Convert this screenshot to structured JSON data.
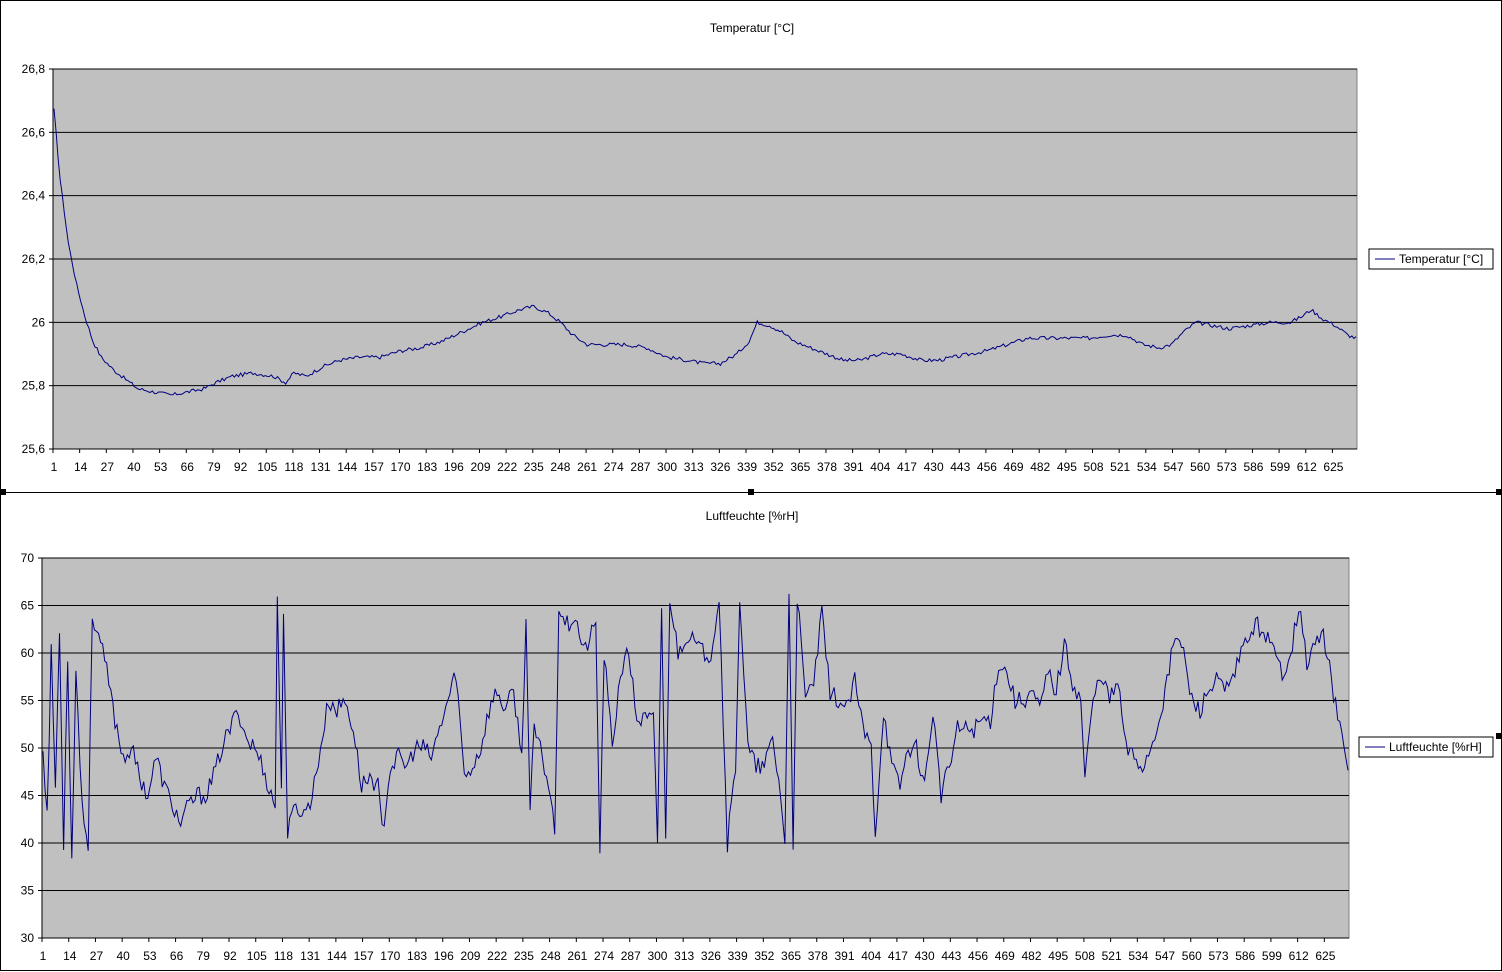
{
  "colors": {
    "plot_bg": "#c0c0c0",
    "line": "#000080",
    "grid": "#000000"
  },
  "chart_data": [
    {
      "type": "line",
      "title": "Temperatur [°C]",
      "series": [
        {
          "name": "Temperatur [°C]"
        }
      ],
      "x_ticks": [
        "1",
        "14",
        "27",
        "40",
        "53",
        "66",
        "79",
        "92",
        "105",
        "118",
        "131",
        "144",
        "157",
        "170",
        "183",
        "196",
        "209",
        "222",
        "235",
        "248",
        "261",
        "274",
        "287",
        "300",
        "313",
        "326",
        "339",
        "352",
        "365",
        "378",
        "391",
        "404",
        "417",
        "430",
        "443",
        "456",
        "469",
        "482",
        "495",
        "508",
        "521",
        "534",
        "547",
        "560",
        "573",
        "586",
        "599",
        "612",
        "625"
      ],
      "y_ticks": [
        "25,6",
        "25,8",
        "26",
        "26,2",
        "26,4",
        "26,6",
        "26,8"
      ],
      "ylim": [
        25.6,
        26.8
      ],
      "x_count": 636,
      "grid": true,
      "legend": "right",
      "profile": [
        [
          1,
          26.67
        ],
        [
          4,
          26.45
        ],
        [
          8,
          26.25
        ],
        [
          12,
          26.12
        ],
        [
          16,
          26.02
        ],
        [
          20,
          25.94
        ],
        [
          24,
          25.89
        ],
        [
          30,
          25.85
        ],
        [
          36,
          25.82
        ],
        [
          42,
          25.79
        ],
        [
          50,
          25.78
        ],
        [
          58,
          25.77
        ],
        [
          66,
          25.78
        ],
        [
          74,
          25.79
        ],
        [
          80,
          25.81
        ],
        [
          88,
          25.83
        ],
        [
          98,
          25.84
        ],
        [
          108,
          25.83
        ],
        [
          114,
          25.81
        ],
        [
          118,
          25.84
        ],
        [
          124,
          25.83
        ],
        [
          132,
          25.86
        ],
        [
          140,
          25.88
        ],
        [
          150,
          25.89
        ],
        [
          160,
          25.89
        ],
        [
          170,
          25.91
        ],
        [
          180,
          25.92
        ],
        [
          190,
          25.94
        ],
        [
          200,
          25.97
        ],
        [
          210,
          26.0
        ],
        [
          220,
          26.02
        ],
        [
          228,
          26.04
        ],
        [
          235,
          26.05
        ],
        [
          242,
          26.03
        ],
        [
          248,
          26.0
        ],
        [
          254,
          25.96
        ],
        [
          261,
          25.93
        ],
        [
          270,
          25.93
        ],
        [
          280,
          25.93
        ],
        [
          290,
          25.92
        ],
        [
          300,
          25.89
        ],
        [
          310,
          25.88
        ],
        [
          318,
          25.87
        ],
        [
          326,
          25.87
        ],
        [
          334,
          25.9
        ],
        [
          340,
          25.94
        ],
        [
          344,
          26.0
        ],
        [
          350,
          25.99
        ],
        [
          356,
          25.97
        ],
        [
          362,
          25.94
        ],
        [
          370,
          25.92
        ],
        [
          378,
          25.9
        ],
        [
          386,
          25.88
        ],
        [
          394,
          25.88
        ],
        [
          404,
          25.9
        ],
        [
          414,
          25.9
        ],
        [
          424,
          25.88
        ],
        [
          432,
          25.88
        ],
        [
          440,
          25.89
        ],
        [
          448,
          25.9
        ],
        [
          456,
          25.91
        ],
        [
          466,
          25.93
        ],
        [
          476,
          25.95
        ],
        [
          486,
          25.95
        ],
        [
          496,
          25.95
        ],
        [
          506,
          25.95
        ],
        [
          516,
          25.96
        ],
        [
          524,
          25.96
        ],
        [
          532,
          25.93
        ],
        [
          540,
          25.92
        ],
        [
          546,
          25.93
        ],
        [
          552,
          25.97
        ],
        [
          558,
          26.0
        ],
        [
          566,
          25.99
        ],
        [
          574,
          25.98
        ],
        [
          584,
          25.99
        ],
        [
          594,
          26.0
        ],
        [
          604,
          26.0
        ],
        [
          610,
          26.02
        ],
        [
          614,
          26.04
        ],
        [
          620,
          26.01
        ],
        [
          626,
          25.99
        ],
        [
          632,
          25.96
        ],
        [
          636,
          25.95
        ]
      ]
    },
    {
      "type": "line",
      "title": "Luftfeuchte [%rH]",
      "series": [
        {
          "name": "Luftfeuchte [%rH]"
        }
      ],
      "x_ticks": [
        "1",
        "14",
        "27",
        "40",
        "53",
        "66",
        "79",
        "92",
        "105",
        "118",
        "131",
        "144",
        "157",
        "170",
        "183",
        "196",
        "209",
        "222",
        "235",
        "248",
        "261",
        "274",
        "287",
        "300",
        "313",
        "326",
        "339",
        "352",
        "365",
        "378",
        "391",
        "404",
        "417",
        "430",
        "443",
        "456",
        "469",
        "482",
        "495",
        "508",
        "521",
        "534",
        "547",
        "560",
        "573",
        "586",
        "599",
        "612",
        "625"
      ],
      "y_ticks": [
        "30",
        "35",
        "40",
        "45",
        "50",
        "55",
        "60",
        "65",
        "70"
      ],
      "ylim": [
        30,
        70
      ],
      "x_count": 636,
      "grid": true,
      "legend": "right",
      "profile": [
        [
          1,
          50
        ],
        [
          3,
          43
        ],
        [
          5,
          60
        ],
        [
          7,
          46
        ],
        [
          9,
          62
        ],
        [
          11,
          40
        ],
        [
          13,
          60
        ],
        [
          15,
          38
        ],
        [
          17,
          59
        ],
        [
          19,
          48
        ],
        [
          21,
          42
        ],
        [
          23,
          40
        ],
        [
          25,
          64
        ],
        [
          28,
          62
        ],
        [
          32,
          58
        ],
        [
          36,
          53
        ],
        [
          40,
          49
        ],
        [
          44,
          50
        ],
        [
          48,
          47
        ],
        [
          52,
          45
        ],
        [
          56,
          49
        ],
        [
          60,
          46
        ],
        [
          64,
          44
        ],
        [
          68,
          42
        ],
        [
          72,
          44
        ],
        [
          76,
          45
        ],
        [
          80,
          45
        ],
        [
          84,
          47
        ],
        [
          88,
          50
        ],
        [
          92,
          52
        ],
        [
          96,
          54
        ],
        [
          100,
          51
        ],
        [
          104,
          50
        ],
        [
          108,
          48
        ],
        [
          112,
          45
        ],
        [
          114,
          44
        ],
        [
          115,
          66
        ],
        [
          117,
          45
        ],
        [
          118,
          65
        ],
        [
          120,
          41
        ],
        [
          124,
          44
        ],
        [
          128,
          43
        ],
        [
          132,
          45
        ],
        [
          136,
          50
        ],
        [
          140,
          55
        ],
        [
          144,
          54
        ],
        [
          148,
          55
        ],
        [
          152,
          52
        ],
        [
          156,
          46
        ],
        [
          160,
          47
        ],
        [
          164,
          46
        ],
        [
          166,
          41
        ],
        [
          170,
          48
        ],
        [
          174,
          49
        ],
        [
          178,
          48
        ],
        [
          182,
          50
        ],
        [
          186,
          50
        ],
        [
          190,
          49
        ],
        [
          194,
          52
        ],
        [
          198,
          55
        ],
        [
          202,
          58
        ],
        [
          206,
          47
        ],
        [
          210,
          48
        ],
        [
          214,
          50
        ],
        [
          218,
          54
        ],
        [
          222,
          56
        ],
        [
          226,
          54
        ],
        [
          230,
          56
        ],
        [
          234,
          49
        ],
        [
          236,
          64
        ],
        [
          238,
          43
        ],
        [
          240,
          52
        ],
        [
          244,
          49
        ],
        [
          248,
          45
        ],
        [
          250,
          41
        ],
        [
          252,
          65
        ],
        [
          256,
          63
        ],
        [
          260,
          64
        ],
        [
          264,
          60
        ],
        [
          268,
          62
        ],
        [
          270,
          63
        ],
        [
          272,
          39
        ],
        [
          274,
          60
        ],
        [
          278,
          50
        ],
        [
          282,
          58
        ],
        [
          286,
          60
        ],
        [
          290,
          53
        ],
        [
          294,
          53
        ],
        [
          298,
          53
        ],
        [
          300,
          40
        ],
        [
          302,
          65
        ],
        [
          304,
          40
        ],
        [
          306,
          66
        ],
        [
          310,
          60
        ],
        [
          314,
          62
        ],
        [
          318,
          61
        ],
        [
          322,
          60
        ],
        [
          326,
          60
        ],
        [
          330,
          66
        ],
        [
          334,
          40
        ],
        [
          338,
          48
        ],
        [
          340,
          66
        ],
        [
          344,
          50
        ],
        [
          348,
          48
        ],
        [
          352,
          48
        ],
        [
          356,
          51
        ],
        [
          360,
          45
        ],
        [
          362,
          40
        ],
        [
          364,
          66
        ],
        [
          366,
          40
        ],
        [
          368,
          66
        ],
        [
          372,
          55
        ],
        [
          376,
          57
        ],
        [
          380,
          64
        ],
        [
          384,
          56
        ],
        [
          388,
          55
        ],
        [
          392,
          54
        ],
        [
          396,
          57
        ],
        [
          400,
          52
        ],
        [
          404,
          50
        ],
        [
          406,
          41
        ],
        [
          410,
          54
        ],
        [
          414,
          48
        ],
        [
          418,
          46
        ],
        [
          422,
          50
        ],
        [
          426,
          50
        ],
        [
          430,
          46
        ],
        [
          434,
          54
        ],
        [
          438,
          45
        ],
        [
          442,
          48
        ],
        [
          446,
          52
        ],
        [
          450,
          52
        ],
        [
          454,
          52
        ],
        [
          458,
          53
        ],
        [
          462,
          53
        ],
        [
          466,
          59
        ],
        [
          470,
          58
        ],
        [
          474,
          55
        ],
        [
          478,
          55
        ],
        [
          482,
          56
        ],
        [
          486,
          54
        ],
        [
          490,
          58
        ],
        [
          494,
          56
        ],
        [
          498,
          61
        ],
        [
          502,
          57
        ],
        [
          506,
          55
        ],
        [
          508,
          47
        ],
        [
          512,
          55
        ],
        [
          516,
          58
        ],
        [
          520,
          55
        ],
        [
          524,
          57
        ],
        [
          528,
          50
        ],
        [
          532,
          49
        ],
        [
          536,
          48
        ],
        [
          540,
          50
        ],
        [
          544,
          53
        ],
        [
          548,
          57
        ],
        [
          552,
          62
        ],
        [
          556,
          60
        ],
        [
          560,
          55
        ],
        [
          564,
          54
        ],
        [
          568,
          56
        ],
        [
          572,
          57
        ],
        [
          576,
          56
        ],
        [
          580,
          57
        ],
        [
          584,
          60
        ],
        [
          588,
          62
        ],
        [
          592,
          63
        ],
        [
          596,
          62
        ],
        [
          600,
          60
        ],
        [
          604,
          58
        ],
        [
          608,
          60
        ],
        [
          612,
          65
        ],
        [
          616,
          59
        ],
        [
          620,
          61
        ],
        [
          624,
          62
        ],
        [
          628,
          57
        ],
        [
          632,
          52
        ],
        [
          636,
          48
        ]
      ]
    }
  ]
}
